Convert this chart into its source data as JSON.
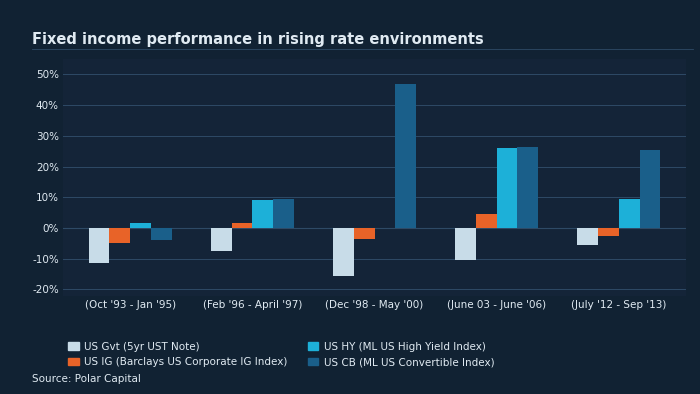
{
  "title": "Fixed income performance in rising rate environments",
  "categories": [
    "(Oct '93 - Jan '95)",
    "(Feb '96 - April '97)",
    "(Dec '98 - May '00)",
    "(June 03 - June '06)",
    "(July '12 - Sep '13)"
  ],
  "series": {
    "US Gvt (5yr UST Note)": [
      -11.5,
      -7.5,
      -15.5,
      -10.5,
      -5.5
    ],
    "US IG (Barclays US Corporate IG Index)": [
      -5.0,
      1.5,
      -3.5,
      4.5,
      -2.5
    ],
    "US HY (ML US High Yield Index)": [
      1.5,
      9.0,
      0.0,
      26.0,
      9.5
    ],
    "US CB (ML US Convertible Index)": [
      -4.0,
      9.5,
      47.0,
      26.5,
      25.5
    ]
  },
  "colors": {
    "US Gvt (5yr UST Note)": "#c8dce8",
    "US IG (Barclays US Corporate IG Index)": "#e86328",
    "US HY (ML US High Yield Index)": "#1db0d8",
    "US CB (ML US Convertible Index)": "#1a5f8a"
  },
  "background_color": "#112233",
  "plot_bg_color": "#142438",
  "text_color": "#e0eaf2",
  "grid_color": "#2e4a66",
  "ylim": [
    -22,
    55
  ],
  "yticks": [
    -20,
    -10,
    0,
    10,
    20,
    30,
    40,
    50
  ],
  "source": "Source: Polar Capital",
  "title_fontsize": 10.5,
  "tick_fontsize": 7.5,
  "legend_fontsize": 7.5,
  "source_fontsize": 7.5
}
